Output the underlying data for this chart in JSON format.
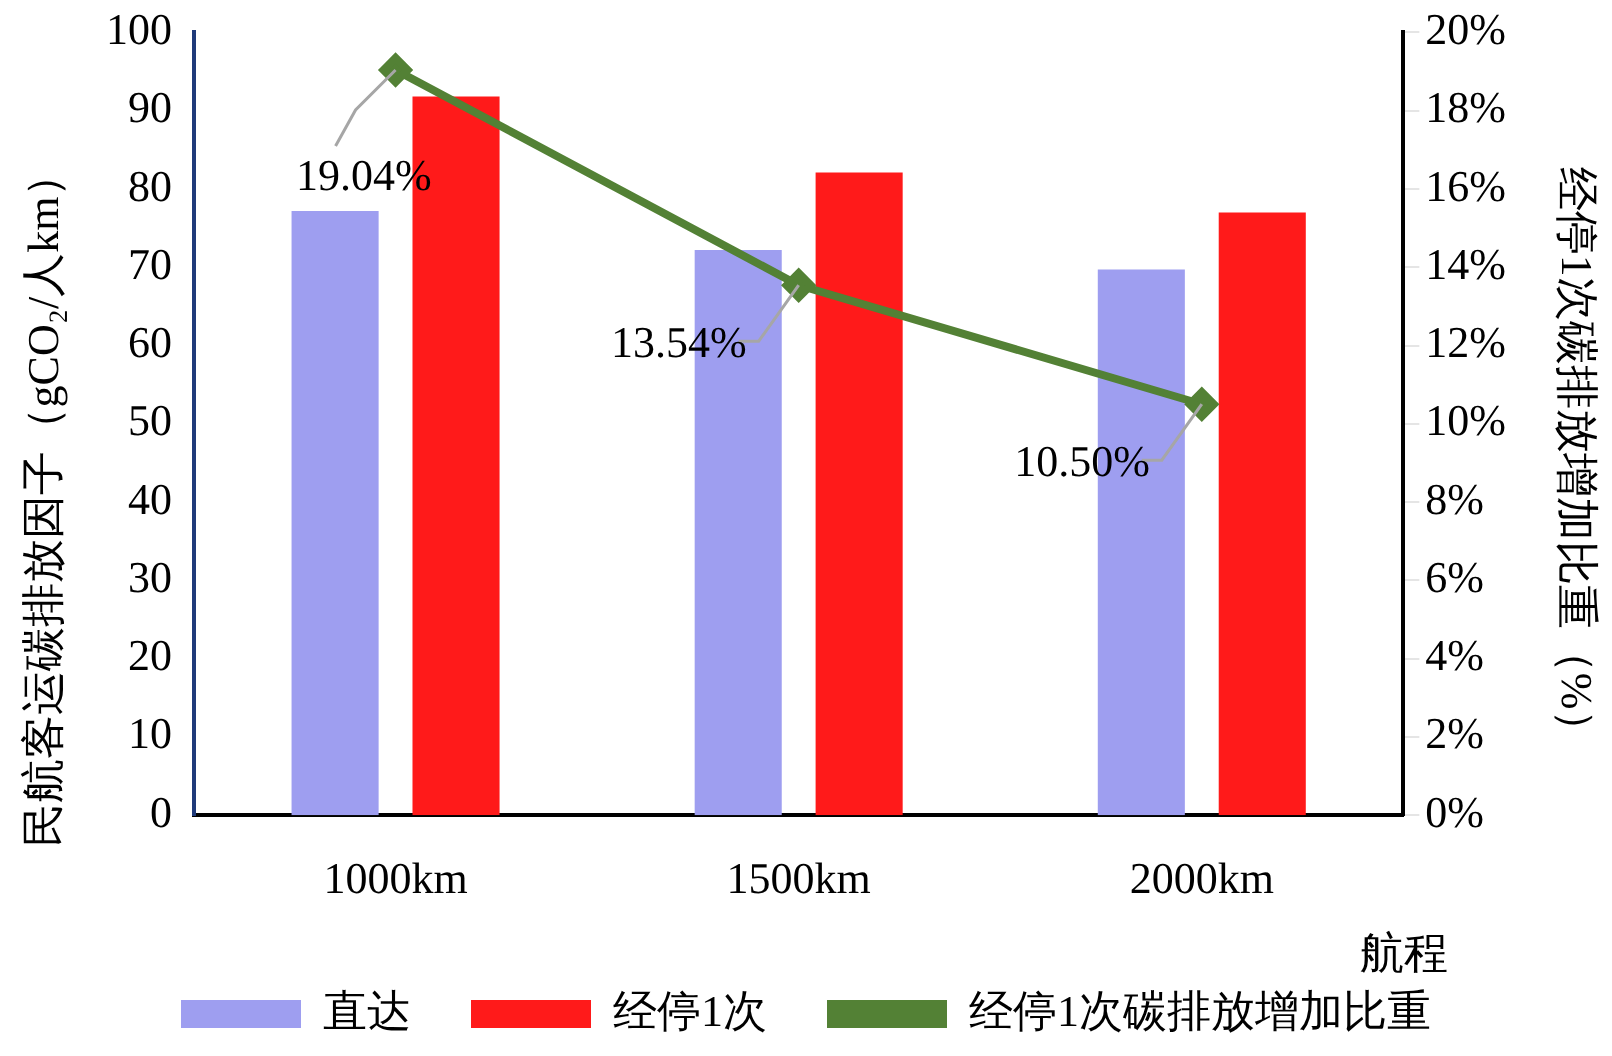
{
  "chart_data": {
    "type": "bar",
    "categories": [
      "1000km",
      "1500km",
      "2000km"
    ],
    "xlabel": "航程",
    "ylabel": "民航客运碳排放因子（gCO₂/人km）",
    "y2label": "经停1次碳排放增加比重（%）",
    "series": [
      {
        "name": "直达",
        "color": "#9e9ef0",
        "values": [
          77.2,
          72.2,
          69.7
        ]
      },
      {
        "name": "经停1次",
        "color": "#ff1a1a",
        "values": [
          91.8,
          82.1,
          77.0
        ]
      },
      {
        "name": "经停1次碳排放增加比重",
        "type": "line",
        "axis": "y2",
        "color": "#538135",
        "values": [
          19.04,
          13.54,
          10.5
        ],
        "value_labels": [
          "19.04%",
          "13.54%",
          "10.50%"
        ]
      }
    ],
    "ylim": [
      0,
      100
    ],
    "yticks": [
      0,
      10,
      20,
      30,
      40,
      50,
      60,
      70,
      80,
      90,
      100
    ],
    "y2lim": [
      0,
      20
    ],
    "y2ticks": [
      {
        "value": 0,
        "label": "0%"
      },
      {
        "value": 2,
        "label": "2%"
      },
      {
        "value": 4,
        "label": "4%"
      },
      {
        "value": 6,
        "label": "6%"
      },
      {
        "value": 8,
        "label": "8%"
      },
      {
        "value": 10,
        "label": "10%"
      },
      {
        "value": 12,
        "label": "12%"
      },
      {
        "value": 14,
        "label": "14%"
      },
      {
        "value": 16,
        "label": "16%"
      },
      {
        "value": 18,
        "label": "18%"
      },
      {
        "value": 20,
        "label": "20%"
      }
    ],
    "grid": false,
    "legend": "bottom",
    "marker": "diamond",
    "line_style": "solid"
  }
}
